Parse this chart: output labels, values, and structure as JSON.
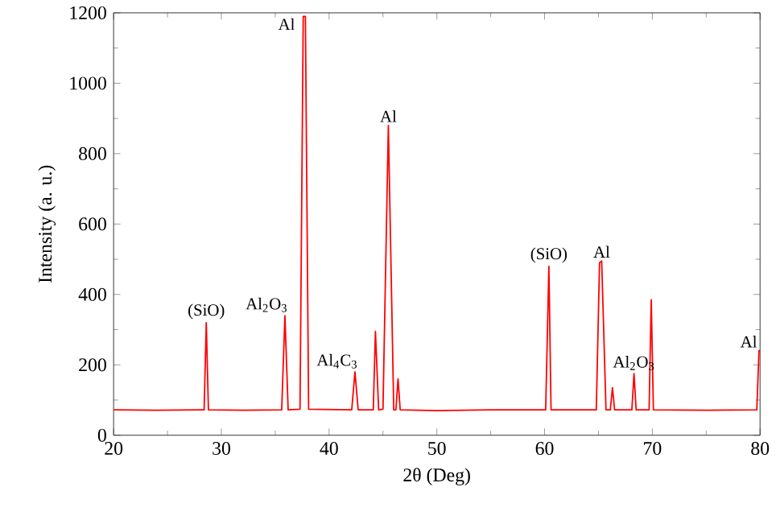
{
  "chart_data": {
    "type": "line",
    "xlabel": "2θ (Deg)",
    "ylabel": "Intensity (a. u.)",
    "x": [
      20,
      24,
      28,
      28.4,
      28.6,
      28.8,
      32,
      35.6,
      35.9,
      36.2,
      37.3,
      37.6,
      37.8,
      38.1,
      42.1,
      42.4,
      42.7,
      44.1,
      44.3,
      44.6,
      45.0,
      45.5,
      46.0,
      46.2,
      46.4,
      46.6,
      50,
      55,
      60.1,
      60.4,
      60.6,
      64.8,
      65.1,
      65.3,
      65.7,
      66.1,
      66.3,
      66.5,
      68.1,
      68.3,
      68.5,
      69.7,
      69.9,
      70.1,
      75,
      79.7,
      79.9,
      80
    ],
    "series": [
      {
        "color": "#ff0000",
        "values": [
          72,
          71,
          72,
          72,
          320,
          72,
          71,
          72,
          340,
          72,
          74,
          1190,
          1190,
          74,
          72,
          180,
          72,
          72,
          295,
          72,
          74,
          880,
          72,
          72,
          160,
          72,
          70,
          72,
          72,
          480,
          72,
          72,
          490,
          495,
          72,
          72,
          135,
          72,
          72,
          175,
          72,
          72,
          385,
          72,
          71,
          72,
          240,
          240
        ]
      }
    ],
    "xlim": [
      20,
      80
    ],
    "ylim": [
      0,
      1200
    ],
    "xticks": [
      20,
      30,
      40,
      50,
      60,
      70,
      80
    ],
    "yticks": [
      0,
      200,
      400,
      600,
      800,
      1000,
      1200
    ],
    "grid": false,
    "marker": "none",
    "line_style": "solid",
    "annotations": [
      {
        "text": "(SiO)",
        "x": 28.6,
        "y": 320
      },
      {
        "text": "Al$_{2}$O$_{3}$",
        "x": 35.9,
        "y": 340
      },
      {
        "text": "Al",
        "x": 37.6,
        "y": 1190
      },
      {
        "text": "Al$_{4}$C$_{3}$",
        "x": 42.4,
        "y": 180
      },
      {
        "text": "Al",
        "x": 45.5,
        "y": 880
      },
      {
        "text": "(SiO)",
        "x": 60.4,
        "y": 480
      },
      {
        "text": "Al",
        "x": 65.3,
        "y": 495
      },
      {
        "text": "Al$_{2}$O$_{3}$",
        "x": 68.3,
        "y": 175
      },
      {
        "text": "Al",
        "x": 79.9,
        "y": 240
      }
    ]
  }
}
